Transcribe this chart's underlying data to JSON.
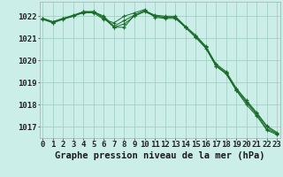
{
  "title": "Graphe pression niveau de la mer (hPa)",
  "background_color": "#cceee8",
  "grid_color": "#99ccbb",
  "line_color": "#1a6b2a",
  "x_labels": [
    "0",
    "1",
    "2",
    "3",
    "4",
    "5",
    "6",
    "7",
    "8",
    "9",
    "10",
    "11",
    "12",
    "13",
    "14",
    "15",
    "16",
    "17",
    "18",
    "19",
    "20",
    "21",
    "22",
    "23"
  ],
  "series1": [
    1021.9,
    1021.75,
    1021.9,
    1022.0,
    1022.15,
    1022.15,
    1021.85,
    1021.7,
    1022.0,
    1022.15,
    1022.3,
    1021.95,
    1021.9,
    1021.9,
    1021.5,
    1021.1,
    1020.6,
    1019.75,
    1019.4,
    1018.65,
    1018.1,
    1017.55,
    1016.9,
    1016.7
  ],
  "series2": [
    1021.9,
    1021.75,
    1021.9,
    1022.05,
    1022.2,
    1022.2,
    1022.0,
    1021.55,
    1021.8,
    1022.05,
    1022.25,
    1022.05,
    1022.0,
    1022.0,
    1021.55,
    1021.15,
    1020.65,
    1019.85,
    1019.5,
    1018.75,
    1018.2,
    1017.65,
    1017.05,
    1016.75
  ],
  "series3": [
    1021.85,
    1021.7,
    1021.85,
    1022.0,
    1022.2,
    1022.2,
    1021.95,
    1021.5,
    1021.65,
    1022.0,
    1022.2,
    1022.0,
    1021.95,
    1021.95,
    1021.5,
    1021.05,
    1020.6,
    1019.8,
    1019.45,
    1018.7,
    1018.15,
    1017.6,
    1017.0,
    1016.7
  ],
  "series4": [
    1021.9,
    1021.7,
    1021.9,
    1022.0,
    1022.2,
    1022.2,
    1021.9,
    1021.5,
    1021.5,
    1022.05,
    1022.25,
    1022.0,
    1021.95,
    1021.95,
    1021.5,
    1021.05,
    1020.55,
    1019.75,
    1019.4,
    1018.65,
    1018.0,
    1017.5,
    1016.85,
    1016.65
  ],
  "ylim": [
    1016.5,
    1022.65
  ],
  "yticks": [
    1017,
    1018,
    1019,
    1020,
    1021,
    1022
  ],
  "xlim": [
    -0.3,
    23.3
  ],
  "title_fontsize": 7.5,
  "tick_fontsize": 6.5
}
